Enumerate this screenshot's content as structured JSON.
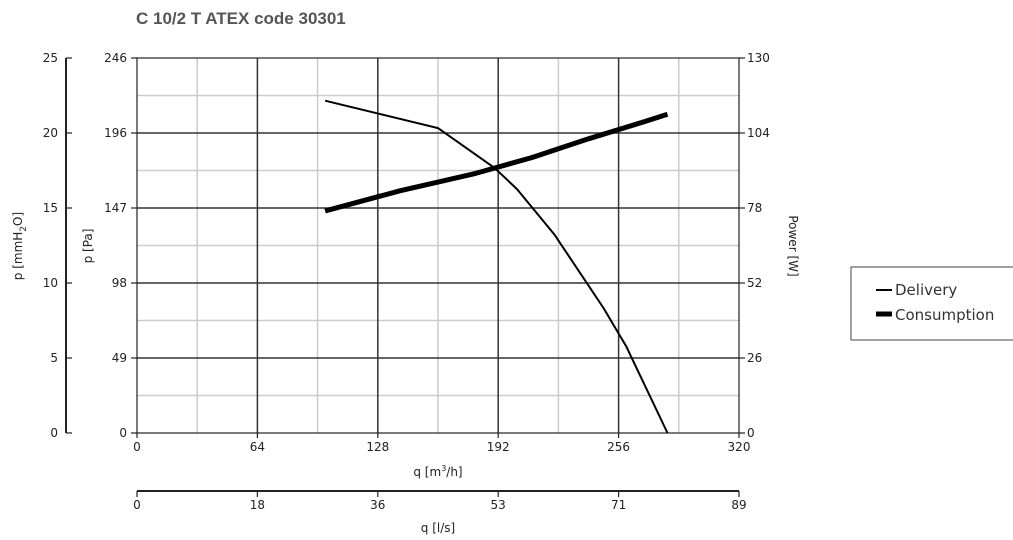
{
  "chart_data": {
    "type": "line",
    "title": "C 10/2 T ATEX code 30301",
    "x_axis": {
      "label_main": "q [m",
      "label_sup": "3",
      "label_tail": "/h]",
      "range": [
        0,
        320
      ],
      "ticks": [
        "0",
        "64",
        "128",
        "192",
        "256",
        "320"
      ]
    },
    "x2_axis": {
      "label": "q [l/s]",
      "range": [
        0,
        89
      ],
      "ticks": [
        "0",
        "18",
        "36",
        "53",
        "71",
        "89"
      ]
    },
    "y_left_outer": {
      "label_main": "p [mmH",
      "label_sub": "2",
      "label_tail": "O]",
      "range": [
        0,
        25
      ],
      "ticks": [
        "0",
        "5",
        "10",
        "15",
        "20",
        "25"
      ]
    },
    "y_left_inner": {
      "label": "p [Pa]",
      "range": [
        0,
        246
      ],
      "ticks": [
        "0",
        "49",
        "98",
        "147",
        "196",
        "246"
      ]
    },
    "y_right": {
      "label": "Power [W]",
      "range": [
        0,
        130
      ],
      "ticks": [
        "0",
        "26",
        "52",
        "78",
        "104",
        "130"
      ]
    },
    "grid": true,
    "legend": {
      "placement": "right"
    },
    "series": [
      {
        "name": "Delivery",
        "axis": "pressure_pa",
        "points": [
          [
            100,
            218
          ],
          [
            160,
            200
          ],
          [
            190,
            174
          ],
          [
            202,
            160
          ],
          [
            222,
            130
          ],
          [
            248,
            82
          ],
          [
            260,
            57
          ],
          [
            282,
            0
          ]
        ]
      },
      {
        "name": "Consumption",
        "axis": "power_w",
        "points": [
          [
            100,
            77
          ],
          [
            140,
            84
          ],
          [
            180,
            90
          ],
          [
            210,
            95.5
          ],
          [
            240,
            102
          ],
          [
            270,
            108
          ],
          [
            282,
            110.5
          ]
        ]
      }
    ],
    "colors": {
      "grid_major": "#333333",
      "grid_minor": "#cccccc",
      "line": "#000000",
      "title": "#555555"
    }
  }
}
